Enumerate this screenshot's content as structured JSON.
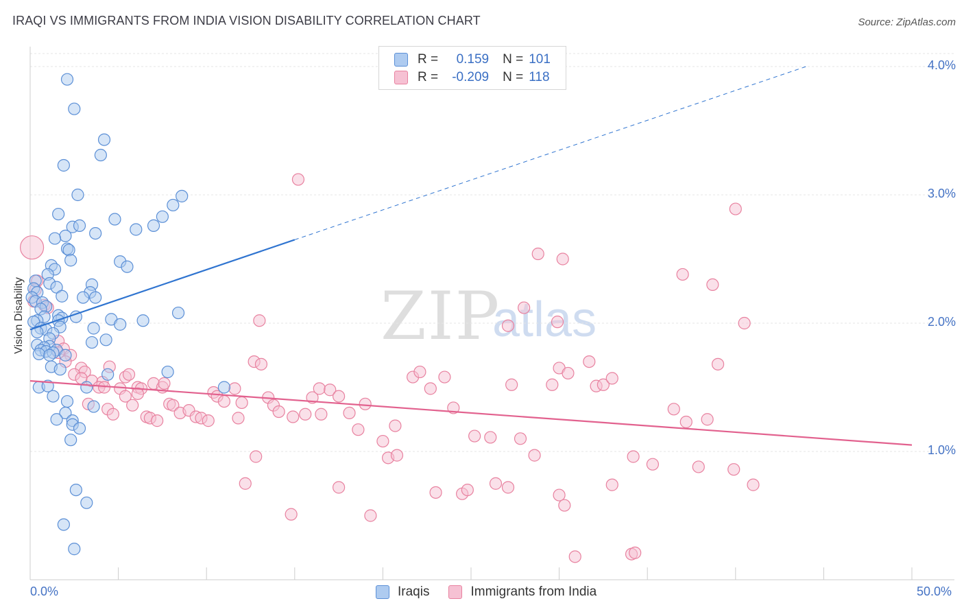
{
  "title": "IRAQI VS IMMIGRANTS FROM INDIA VISION DISABILITY CORRELATION CHART",
  "source": "Source: ZipAtlas.com",
  "watermark": {
    "zip": "ZIP",
    "atlas": "atlas"
  },
  "legend": {
    "rows": [
      {
        "r_label": "R =",
        "r_value": "0.159",
        "n_label": "N =",
        "n_value": "101"
      },
      {
        "r_label": "R =",
        "r_value": "-0.209",
        "n_label": "N =",
        "n_value": "118"
      }
    ]
  },
  "colors": {
    "iraqis_fill": "#aecbf0",
    "iraqis_stroke": "#5b8fd6",
    "iraqis_line": "#2f74d0",
    "india_fill": "#f6c1d3",
    "india_stroke": "#e8819f",
    "india_line": "#e2618e",
    "grid": "#e6e6e6",
    "tick_text": "#4472c4"
  },
  "chart_data": {
    "type": "scatter",
    "title": "IRAQI VS IMMIGRANTS FROM INDIA VISION DISABILITY CORRELATION CHART",
    "xlabel": "",
    "ylabel": "Vision Disability",
    "xlim": [
      0,
      50
    ],
    "ylim": [
      0,
      4.2
    ],
    "x_tick_labels": [
      "0.0%",
      "50.0%"
    ],
    "y_ticks": [
      1.0,
      2.0,
      3.0,
      4.0
    ],
    "y_tick_labels": [
      "1.0%",
      "2.0%",
      "3.0%",
      "4.0%"
    ],
    "grid": true,
    "legend_position": "bottom",
    "series": [
      {
        "name": "Iraqis",
        "r": 0.159,
        "n": 101,
        "trend": {
          "x0": 0,
          "y0": 1.95,
          "x1": 15,
          "y1": 2.65,
          "dashed_to_x": 44,
          "dashed_to_y": 4.0
        },
        "points": [
          [
            2.1,
            3.9
          ],
          [
            2.5,
            3.67
          ],
          [
            4.2,
            3.43
          ],
          [
            4.0,
            3.31
          ],
          [
            1.9,
            3.23
          ],
          [
            2.7,
            3.0
          ],
          [
            8.6,
            2.99
          ],
          [
            8.1,
            2.92
          ],
          [
            1.6,
            2.85
          ],
          [
            7.5,
            2.83
          ],
          [
            4.8,
            2.81
          ],
          [
            2.4,
            2.75
          ],
          [
            2.8,
            2.76
          ],
          [
            7.0,
            2.76
          ],
          [
            6.0,
            2.73
          ],
          [
            3.7,
            2.7
          ],
          [
            2.0,
            2.68
          ],
          [
            1.4,
            2.66
          ],
          [
            2.1,
            2.58
          ],
          [
            2.2,
            2.57
          ],
          [
            2.3,
            2.49
          ],
          [
            5.1,
            2.48
          ],
          [
            5.5,
            2.44
          ],
          [
            1.2,
            2.45
          ],
          [
            1.4,
            2.42
          ],
          [
            1.0,
            2.38
          ],
          [
            0.3,
            2.33
          ],
          [
            1.1,
            2.31
          ],
          [
            3.5,
            2.3
          ],
          [
            0.2,
            2.27
          ],
          [
            1.5,
            2.28
          ],
          [
            3.4,
            2.24
          ],
          [
            0.4,
            2.24
          ],
          [
            0.1,
            2.2
          ],
          [
            1.8,
            2.21
          ],
          [
            3.0,
            2.2
          ],
          [
            3.7,
            2.2
          ],
          [
            0.3,
            2.17
          ],
          [
            0.7,
            2.16
          ],
          [
            0.9,
            2.13
          ],
          [
            0.6,
            2.11
          ],
          [
            8.4,
            2.08
          ],
          [
            1.6,
            2.06
          ],
          [
            2.6,
            2.05
          ],
          [
            0.8,
            2.05
          ],
          [
            1.8,
            2.04
          ],
          [
            4.6,
            2.03
          ],
          [
            6.4,
            2.02
          ],
          [
            0.4,
            2.02
          ],
          [
            1.6,
            2.02
          ],
          [
            0.2,
            2.01
          ],
          [
            5.1,
            1.99
          ],
          [
            1.7,
            1.97
          ],
          [
            0.6,
            1.96
          ],
          [
            3.6,
            1.96
          ],
          [
            0.9,
            1.95
          ],
          [
            0.4,
            1.93
          ],
          [
            1.3,
            1.92
          ],
          [
            1.1,
            1.88
          ],
          [
            4.3,
            1.87
          ],
          [
            3.5,
            1.85
          ],
          [
            0.4,
            1.83
          ],
          [
            1.1,
            1.82
          ],
          [
            0.8,
            1.81
          ],
          [
            0.6,
            1.79
          ],
          [
            1.5,
            1.79
          ],
          [
            0.9,
            1.78
          ],
          [
            1.3,
            1.77
          ],
          [
            0.5,
            1.76
          ],
          [
            2.0,
            1.75
          ],
          [
            1.1,
            1.75
          ],
          [
            1.2,
            1.66
          ],
          [
            1.7,
            1.64
          ],
          [
            7.8,
            1.62
          ],
          [
            4.4,
            1.6
          ],
          [
            11.0,
            1.5
          ],
          [
            0.5,
            1.5
          ],
          [
            1.0,
            1.51
          ],
          [
            3.2,
            1.5
          ],
          [
            1.3,
            1.43
          ],
          [
            2.1,
            1.39
          ],
          [
            3.6,
            1.35
          ],
          [
            2.0,
            1.3
          ],
          [
            1.5,
            1.25
          ],
          [
            2.4,
            1.24
          ],
          [
            2.4,
            1.21
          ],
          [
            2.8,
            1.18
          ],
          [
            2.3,
            1.09
          ],
          [
            2.6,
            0.7
          ],
          [
            3.2,
            0.6
          ],
          [
            1.9,
            0.43
          ],
          [
            2.5,
            0.24
          ]
        ]
      },
      {
        "name": "Immigrants from India",
        "r": -0.209,
        "n": 118,
        "trend": {
          "x0": 0,
          "y0": 1.55,
          "x1": 50,
          "y1": 1.05
        },
        "points": [
          [
            0.1,
            2.59
          ],
          [
            0.4,
            2.33
          ],
          [
            0.3,
            2.26
          ],
          [
            0.2,
            2.17
          ],
          [
            0.8,
            2.14
          ],
          [
            1.0,
            2.12
          ],
          [
            1.6,
            1.86
          ],
          [
            1.9,
            1.8
          ],
          [
            1.6,
            1.77
          ],
          [
            2.3,
            1.75
          ],
          [
            2.0,
            1.7
          ],
          [
            2.9,
            1.65
          ],
          [
            3.1,
            1.62
          ],
          [
            2.5,
            1.6
          ],
          [
            2.9,
            1.57
          ],
          [
            3.5,
            1.55
          ],
          [
            4.1,
            1.54
          ],
          [
            4.5,
            1.66
          ],
          [
            5.4,
            1.58
          ],
          [
            5.6,
            1.6
          ],
          [
            3.9,
            1.5
          ],
          [
            4.2,
            1.5
          ],
          [
            5.1,
            1.49
          ],
          [
            6.1,
            1.5
          ],
          [
            6.3,
            1.49
          ],
          [
            7.0,
            1.53
          ],
          [
            7.5,
            1.5
          ],
          [
            7.6,
            1.53
          ],
          [
            5.4,
            1.43
          ],
          [
            6.1,
            1.45
          ],
          [
            3.3,
            1.37
          ],
          [
            4.4,
            1.33
          ],
          [
            4.7,
            1.29
          ],
          [
            5.8,
            1.36
          ],
          [
            6.6,
            1.27
          ],
          [
            6.8,
            1.26
          ],
          [
            7.2,
            1.24
          ],
          [
            7.9,
            1.37
          ],
          [
            8.1,
            1.36
          ],
          [
            8.5,
            1.3
          ],
          [
            9.0,
            1.32
          ],
          [
            9.4,
            1.27
          ],
          [
            9.7,
            1.26
          ],
          [
            10.1,
            1.24
          ],
          [
            10.4,
            1.46
          ],
          [
            10.6,
            1.43
          ],
          [
            11.0,
            1.39
          ],
          [
            11.6,
            1.49
          ],
          [
            12.0,
            1.38
          ],
          [
            11.8,
            1.26
          ],
          [
            12.7,
            1.7
          ],
          [
            13.1,
            1.68
          ],
          [
            13.5,
            1.42
          ],
          [
            13.8,
            1.36
          ],
          [
            14.1,
            1.31
          ],
          [
            14.9,
            1.27
          ],
          [
            15.6,
            1.29
          ],
          [
            16.0,
            1.42
          ],
          [
            16.4,
            1.49
          ],
          [
            17.0,
            1.48
          ],
          [
            17.5,
            1.43
          ],
          [
            16.5,
            1.29
          ],
          [
            18.1,
            1.3
          ],
          [
            18.6,
            1.17
          ],
          [
            19.0,
            1.37
          ],
          [
            20.0,
            1.08
          ],
          [
            20.7,
            1.2
          ],
          [
            21.7,
            1.58
          ],
          [
            22.1,
            1.62
          ],
          [
            22.7,
            1.49
          ],
          [
            23.5,
            1.58
          ],
          [
            24.0,
            1.34
          ],
          [
            25.2,
            1.12
          ],
          [
            26.1,
            1.11
          ],
          [
            27.8,
            1.1
          ],
          [
            27.3,
            1.52
          ],
          [
            29.6,
            1.52
          ],
          [
            30.0,
            1.65
          ],
          [
            30.5,
            1.61
          ],
          [
            31.7,
            1.7
          ],
          [
            32.1,
            1.51
          ],
          [
            32.5,
            1.52
          ],
          [
            33.0,
            1.57
          ],
          [
            36.5,
            1.33
          ],
          [
            37.2,
            1.23
          ],
          [
            38.4,
            1.25
          ],
          [
            39.0,
            1.68
          ],
          [
            28.6,
            0.97
          ],
          [
            34.2,
            0.96
          ],
          [
            35.3,
            0.9
          ],
          [
            37.9,
            0.88
          ],
          [
            39.9,
            0.86
          ],
          [
            26.4,
            0.75
          ],
          [
            27.1,
            0.72
          ],
          [
            33.0,
            0.74
          ],
          [
            41.0,
            0.74
          ],
          [
            20.3,
            0.95
          ],
          [
            20.8,
            0.97
          ],
          [
            17.5,
            0.72
          ],
          [
            12.8,
            0.96
          ],
          [
            12.2,
            0.75
          ],
          [
            14.8,
            0.51
          ],
          [
            19.3,
            0.5
          ],
          [
            23.0,
            0.68
          ],
          [
            24.5,
            0.67
          ],
          [
            30.0,
            0.66
          ],
          [
            30.3,
            0.58
          ],
          [
            15.2,
            3.12
          ],
          [
            30.2,
            2.5
          ],
          [
            37.0,
            2.38
          ],
          [
            38.7,
            2.3
          ],
          [
            27.1,
            1.98
          ],
          [
            29.9,
            2.01
          ],
          [
            13.0,
            2.02
          ],
          [
            28.0,
            2.12
          ],
          [
            28.8,
            2.54
          ],
          [
            40.0,
            2.89
          ],
          [
            40.5,
            2.0
          ],
          [
            30.9,
            0.18
          ],
          [
            34.1,
            0.2
          ],
          [
            34.3,
            0.21
          ],
          [
            24.8,
            0.7
          ]
        ]
      }
    ]
  }
}
